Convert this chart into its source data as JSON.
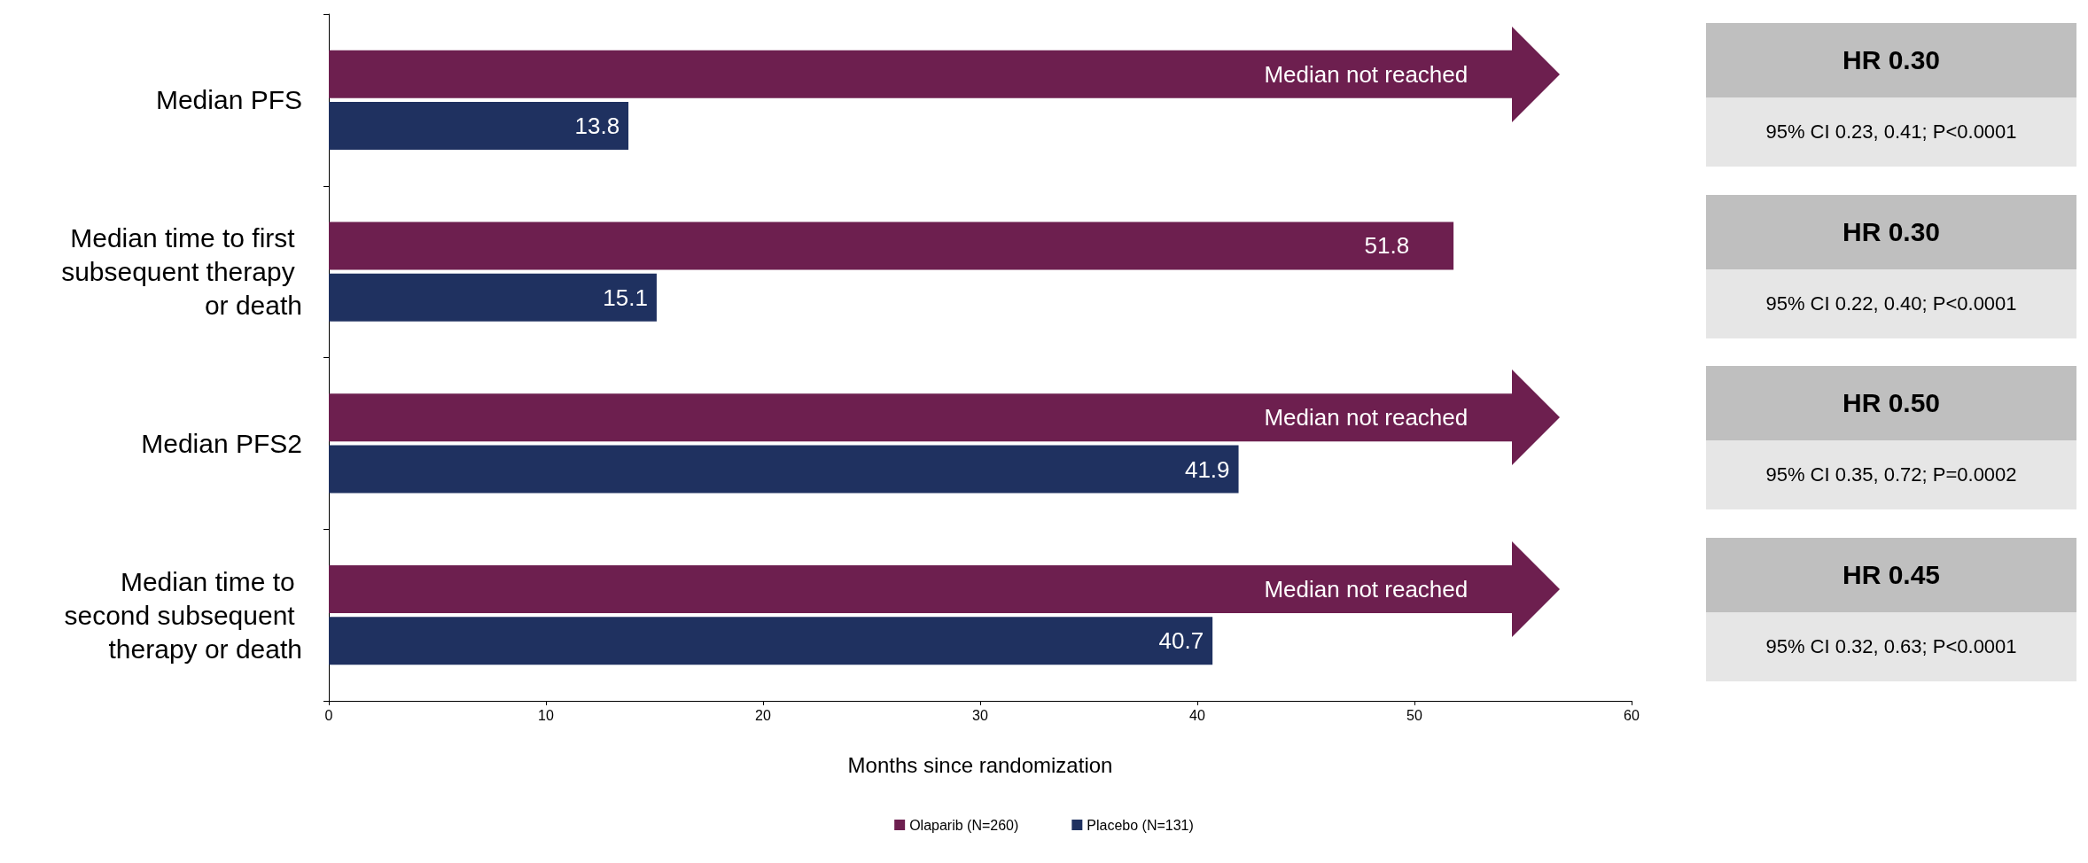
{
  "chart_data": {
    "type": "bar",
    "orientation": "horizontal",
    "xlabel": "Months since randomization",
    "categories": [
      "Median PFS",
      "Median time to first subsequent therapy or death",
      "Median PFS2",
      "Median time to second subsequent therapy or death"
    ],
    "series": [
      {
        "name": "Olaparib (N=260)",
        "color": "#6d1f4f",
        "values": [
          54.5,
          51.8,
          54.5,
          54.5
        ],
        "value_labels": [
          "Median not reached",
          "51.8",
          "Median not reached",
          "Median not reached"
        ]
      },
      {
        "name": "Placebo (N=131)",
        "color": "#1f3160",
        "values": [
          13.8,
          15.1,
          41.9,
          40.7
        ],
        "value_labels": [
          "13.8",
          "15.1",
          "41.9",
          "40.7"
        ]
      }
    ],
    "xlim": [
      0,
      60
    ],
    "xticks": [
      0,
      10,
      20,
      30,
      40,
      50,
      60
    ],
    "grid": false,
    "legend": "bottom",
    "annotations": [
      "HR 0.30",
      "95% CI 0.23, 0.41; P<0.0001",
      "HR 0.30",
      "95% CI 0.22, 0.40; P<0.0001",
      "HR 0.50",
      "95% CI 0.35, 0.72; P=0.0002",
      "HR 0.45",
      "95% CI 0.32, 0.63; P<0.0001"
    ]
  }
}
